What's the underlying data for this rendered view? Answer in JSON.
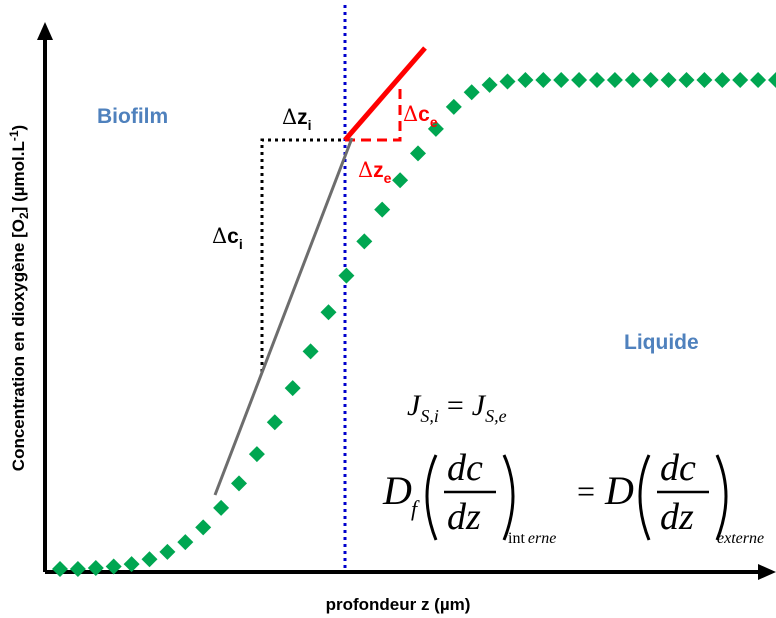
{
  "axes": {
    "x_label": "profondeur z (µm)",
    "y_label_main": "Concentration en dioxygène [O",
    "y_label_sub": "2",
    "y_label_end": "] (µmol.L",
    "y_label_sup": "-1",
    "y_label_close": ")"
  },
  "regions": {
    "biofilm": "Biofilm",
    "liquide": "Liquide"
  },
  "annotations": {
    "delta_symbol": "Δ",
    "dz_i": {
      "base": "z",
      "sub": "i"
    },
    "dc_i": {
      "base": "c",
      "sub": "i"
    },
    "dc_e": {
      "base": "c",
      "sub": "e"
    },
    "dz_e": {
      "base": "z",
      "sub": "e"
    }
  },
  "equations": {
    "eq1": {
      "J": "J",
      "sub_left": "S,i",
      "equals": "=",
      "sub_right": "S,e"
    },
    "eq2": {
      "D": "D",
      "D_sub": "f",
      "num": "dc",
      "den": "dz",
      "sub_int_up": "int",
      "sub_int_it": "erne",
      "equals": "=",
      "D2": "D",
      "sub_ext": "externe"
    }
  },
  "colors": {
    "markers": "#00a651",
    "internal_tangent": "#6d6d6d",
    "external_tangent": "#ff0000",
    "interface_line": "#0000cc",
    "region_text": "#4f81bd"
  },
  "chart_data": {
    "type": "scatter",
    "series": [
      {
        "values_profile": [
          [
            0,
            0.0
          ],
          [
            1,
            0.0
          ],
          [
            2,
            0.002
          ],
          [
            3,
            0.005
          ],
          [
            4,
            0.01
          ],
          [
            5,
            0.02
          ],
          [
            6,
            0.035
          ],
          [
            7,
            0.055
          ],
          [
            8,
            0.085
          ],
          [
            9,
            0.125
          ],
          [
            10,
            0.175
          ],
          [
            11,
            0.235
          ],
          [
            12,
            0.3
          ],
          [
            13,
            0.37
          ],
          [
            14,
            0.445
          ],
          [
            15,
            0.525
          ],
          [
            16,
            0.6
          ],
          [
            17,
            0.67
          ],
          [
            18,
            0.735
          ],
          [
            19,
            0.795
          ],
          [
            20,
            0.85
          ],
          [
            21,
            0.9
          ],
          [
            22,
            0.945
          ],
          [
            23,
            0.975
          ],
          [
            24,
            0.99
          ],
          [
            25,
            0.997
          ],
          [
            26,
            1.0
          ],
          [
            27,
            1.0
          ],
          [
            28,
            1.0
          ],
          [
            29,
            1.0
          ],
          [
            30,
            1.0
          ],
          [
            31,
            1.0
          ],
          [
            32,
            1.0
          ],
          [
            33,
            1.0
          ],
          [
            34,
            1.0
          ],
          [
            35,
            1.0
          ],
          [
            36,
            1.0
          ],
          [
            37,
            1.0
          ],
          [
            38,
            1.0
          ],
          [
            39,
            1.0
          ],
          [
            40,
            1.0
          ]
        ]
      }
    ],
    "grid": false
  }
}
